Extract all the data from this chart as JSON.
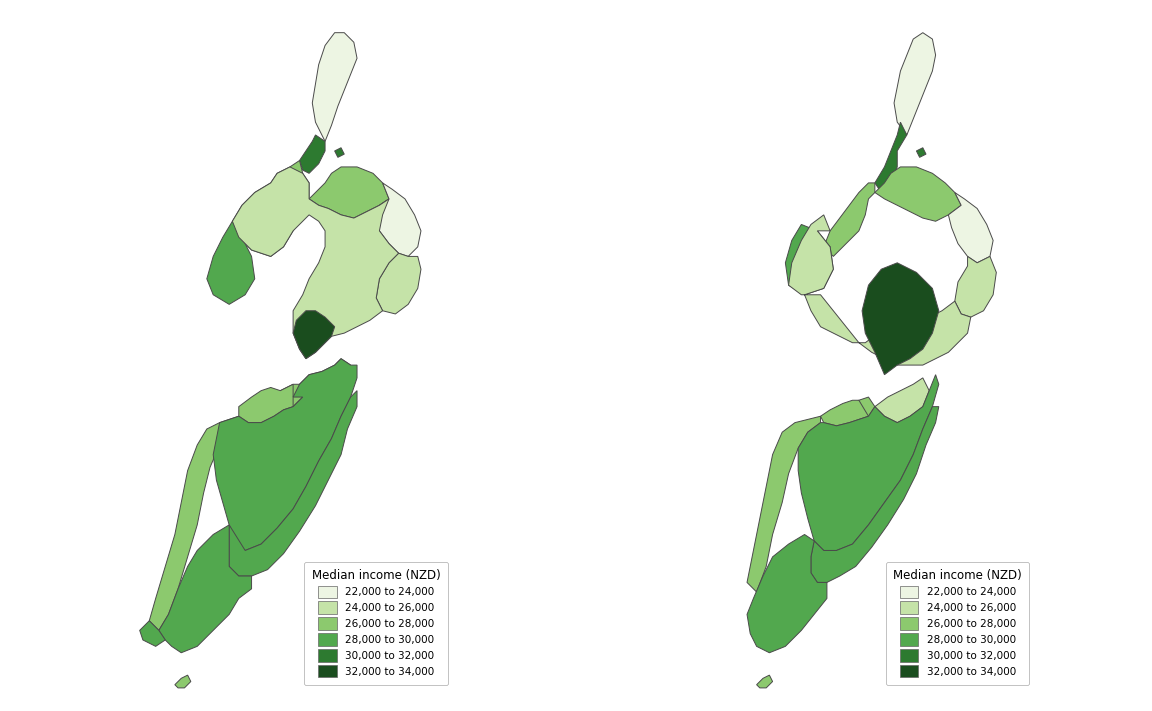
{
  "legend_title": "Median income (NZD)",
  "legend_labels": [
    "22,000 to 24,000",
    "24,000 to 26,000",
    "26,000 to 28,000",
    "28,000 to 30,000",
    "30,000 to 32,000",
    "32,000 to 34,000"
  ],
  "colors": [
    "#edf5e3",
    "#c5e3a8",
    "#8cc96e",
    "#52a84e",
    "#2d7a30",
    "#1a4d1e"
  ],
  "edge_color": "#4a4a4a",
  "edge_width": 0.7,
  "background": "#ffffff",
  "fig_width": 11.52,
  "fig_height": 7.11
}
